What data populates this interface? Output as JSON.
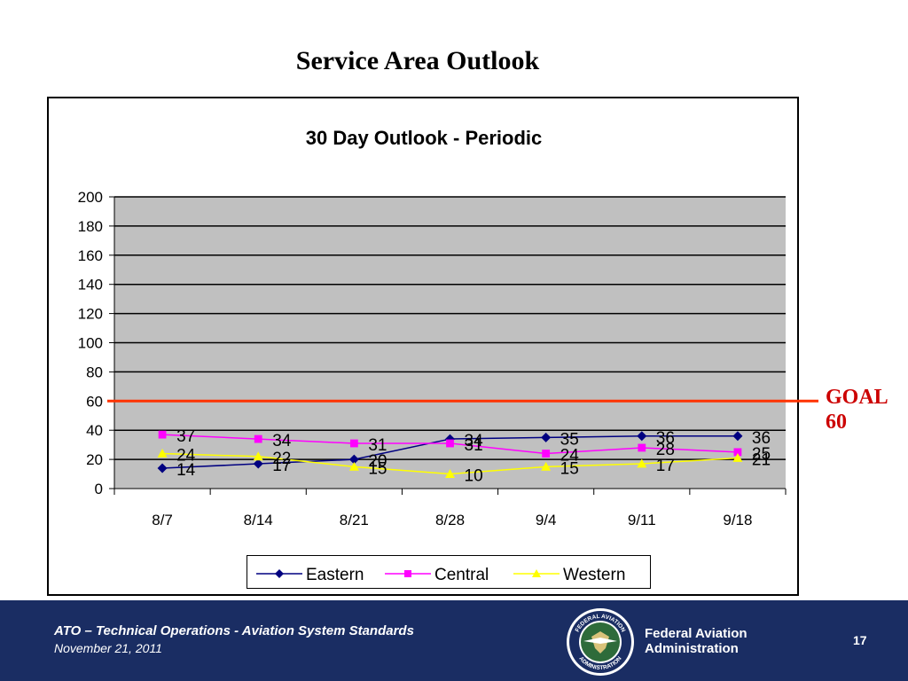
{
  "slide_title": "Service Area Outlook",
  "goal": {
    "label": "GOAL",
    "value": "60",
    "color": "#ff3300"
  },
  "footer": {
    "line1": "ATO – Technical Operations - Aviation System Standards",
    "line2": "November 21, 2011",
    "agency_line1": "Federal Aviation",
    "agency_line2": "Administration",
    "page_number": "17",
    "seal_text_top": "FEDERAL AVIATION",
    "seal_text_bottom": "ADMINISTRATION"
  },
  "chart_data": {
    "type": "line",
    "title": "30 Day Outlook - Periodic",
    "xlabel": "",
    "ylabel": "",
    "categories": [
      "8/7",
      "8/14",
      "8/21",
      "8/28",
      "9/4",
      "9/11",
      "9/18"
    ],
    "ylim": [
      0,
      200
    ],
    "yticks": [
      0,
      20,
      40,
      60,
      80,
      100,
      120,
      140,
      160,
      180,
      200
    ],
    "grid": true,
    "plot_background": "#c0c0c0",
    "goal_line": 60,
    "legend_position": "bottom",
    "series": [
      {
        "name": "Eastern",
        "values": [
          14,
          17,
          20,
          34,
          35,
          36,
          36
        ],
        "color": "#000080",
        "marker": "diamond"
      },
      {
        "name": "Central",
        "values": [
          37,
          34,
          31,
          31,
          24,
          28,
          25
        ],
        "color": "#ff00ff",
        "marker": "square"
      },
      {
        "name": "Western",
        "values": [
          24,
          22,
          15,
          10,
          15,
          17,
          21
        ],
        "color": "#ffff00",
        "marker": "triangle"
      }
    ]
  }
}
